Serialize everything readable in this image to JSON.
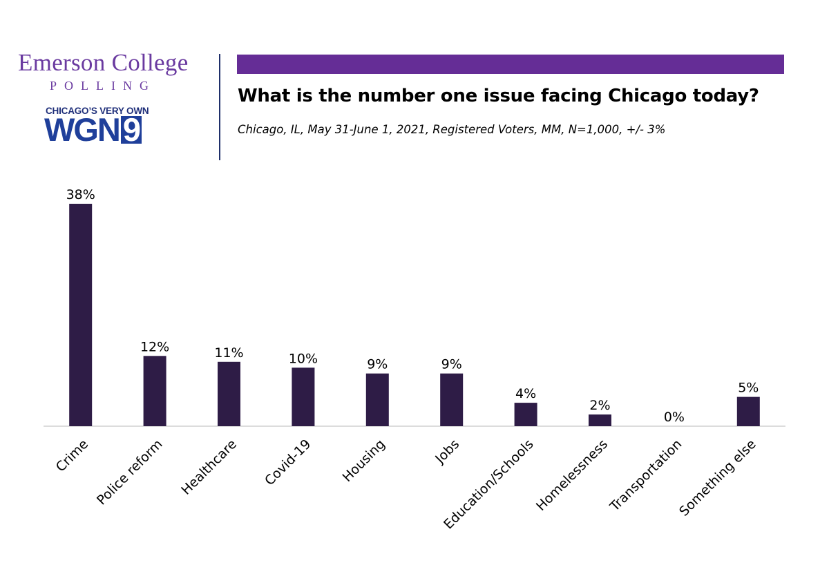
{
  "brand": {
    "emerson": "Emerson College",
    "polling": "POLLING",
    "wgn_tagline": "CHICAGO’S VERY OWN",
    "wgn_letters": "WGN",
    "wgn_number": "9"
  },
  "colors": {
    "accent_purple": "#652d96",
    "bar": "#2e1c46",
    "brand_purple": "#6a3aa0",
    "wgn_blue": "#1f3f9a"
  },
  "chart_data": {
    "type": "bar",
    "title": "What is the number one issue facing Chicago today?",
    "subtitle": "Chicago, IL, May 31-June 1, 2021, Registered Voters, MM, N=1,000, +/- 3%",
    "categories": [
      "Crime",
      "Police reform",
      "Healthcare",
      "Covid-19",
      "Housing",
      "Jobs",
      "Education/Schools",
      "Homelessness",
      "Transportation",
      "Something else"
    ],
    "values": [
      38,
      12,
      11,
      10,
      9,
      9,
      4,
      2,
      0,
      5
    ],
    "value_labels": [
      "38%",
      "12%",
      "11%",
      "10%",
      "9%",
      "9%",
      "4%",
      "2%",
      "0%",
      "5%"
    ],
    "ylim": [
      0,
      38
    ],
    "grid": false,
    "legend": "none",
    "xlabel": "",
    "ylabel": ""
  }
}
